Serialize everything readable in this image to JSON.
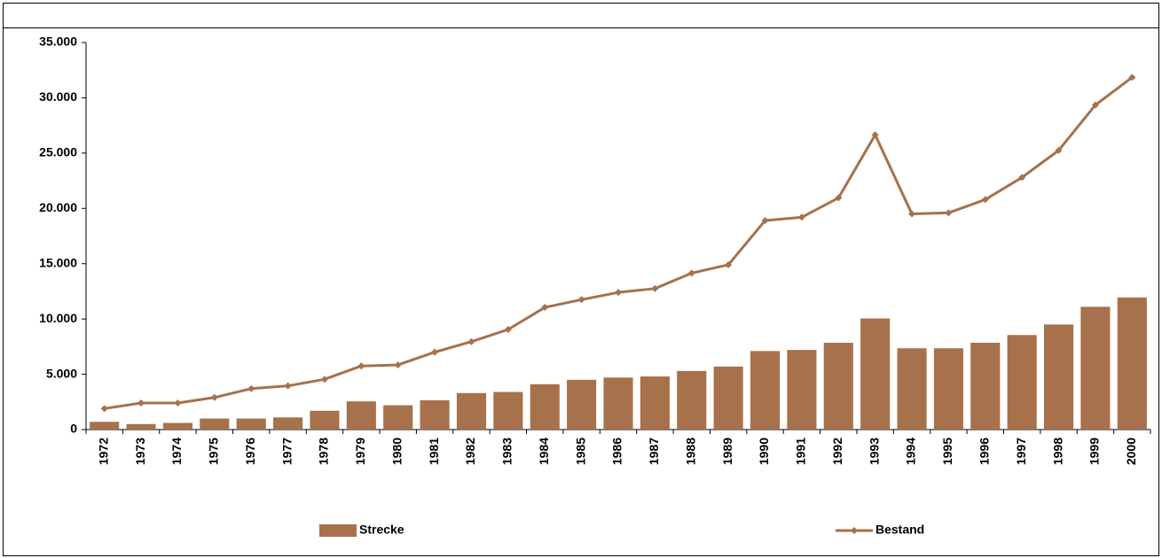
{
  "chart_data": {
    "type": "bar_line",
    "categories": [
      "1972",
      "1973",
      "1974",
      "1975",
      "1976",
      "1977",
      "1978",
      "1979",
      "1980",
      "1981",
      "1982",
      "1983",
      "1984",
      "1985",
      "1986",
      "1987",
      "1988",
      "1989",
      "1990",
      "1991",
      "1992",
      "1993",
      "1994",
      "1995",
      "1996",
      "1997",
      "1998",
      "1999",
      "2000"
    ],
    "series": [
      {
        "name": "Strecke",
        "type": "bar",
        "color": "#a6714b",
        "values": [
          700,
          500,
          600,
          1000,
          1000,
          1100,
          1700,
          2550,
          2200,
          2650,
          3300,
          3400,
          4100,
          4500,
          4700,
          4800,
          5300,
          5700,
          7100,
          7200,
          7850,
          10050,
          7350,
          7350,
          7850,
          8550,
          9500,
          11100,
          11950
        ]
      },
      {
        "name": "Bestand",
        "type": "line",
        "color": "#a6714b",
        "values": [
          1900,
          2400,
          2400,
          2900,
          3700,
          3950,
          4550,
          5750,
          5850,
          7000,
          7950,
          9050,
          11050,
          11750,
          12400,
          12750,
          14150,
          14900,
          18900,
          19200,
          20950,
          26650,
          19500,
          19600,
          20800,
          22800,
          25250,
          29350,
          31850
        ]
      }
    ],
    "ylim": [
      0,
      35000
    ],
    "yticks": [
      0,
      {
        "value": 5000,
        "label": "5.000"
      },
      {
        "value": 10000,
        "label": "10.000"
      },
      {
        "value": 15000,
        "label": "15.000"
      },
      {
        "value": 20000,
        "label": "20.000"
      },
      {
        "value": 25000,
        "label": "25.000"
      },
      {
        "value": 30000,
        "label": "30.000"
      },
      {
        "value": 35000,
        "label": "35.000"
      }
    ],
    "grid": false,
    "legend": "bottom"
  }
}
